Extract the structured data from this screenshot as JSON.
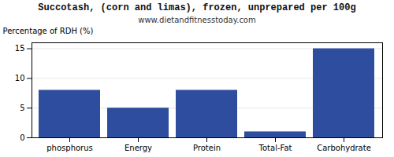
{
  "chart_data": {
    "type": "bar",
    "title": "Succotash, (corn and limas), frozen, unprepared per 100g",
    "subtitle": "www.dietandfitnesstoday.com",
    "categories": [
      "phosphorus",
      "Energy",
      "Protein",
      "Total-Fat",
      "Carbohydrate"
    ],
    "values": [
      8,
      5,
      8,
      1,
      15
    ],
    "color": "#2e4d9e",
    "ylabel": "Percentage of RDH (%)",
    "ylim": [
      0,
      16
    ],
    "yticks": [
      0,
      5,
      10,
      15
    ],
    "grid": true
  }
}
